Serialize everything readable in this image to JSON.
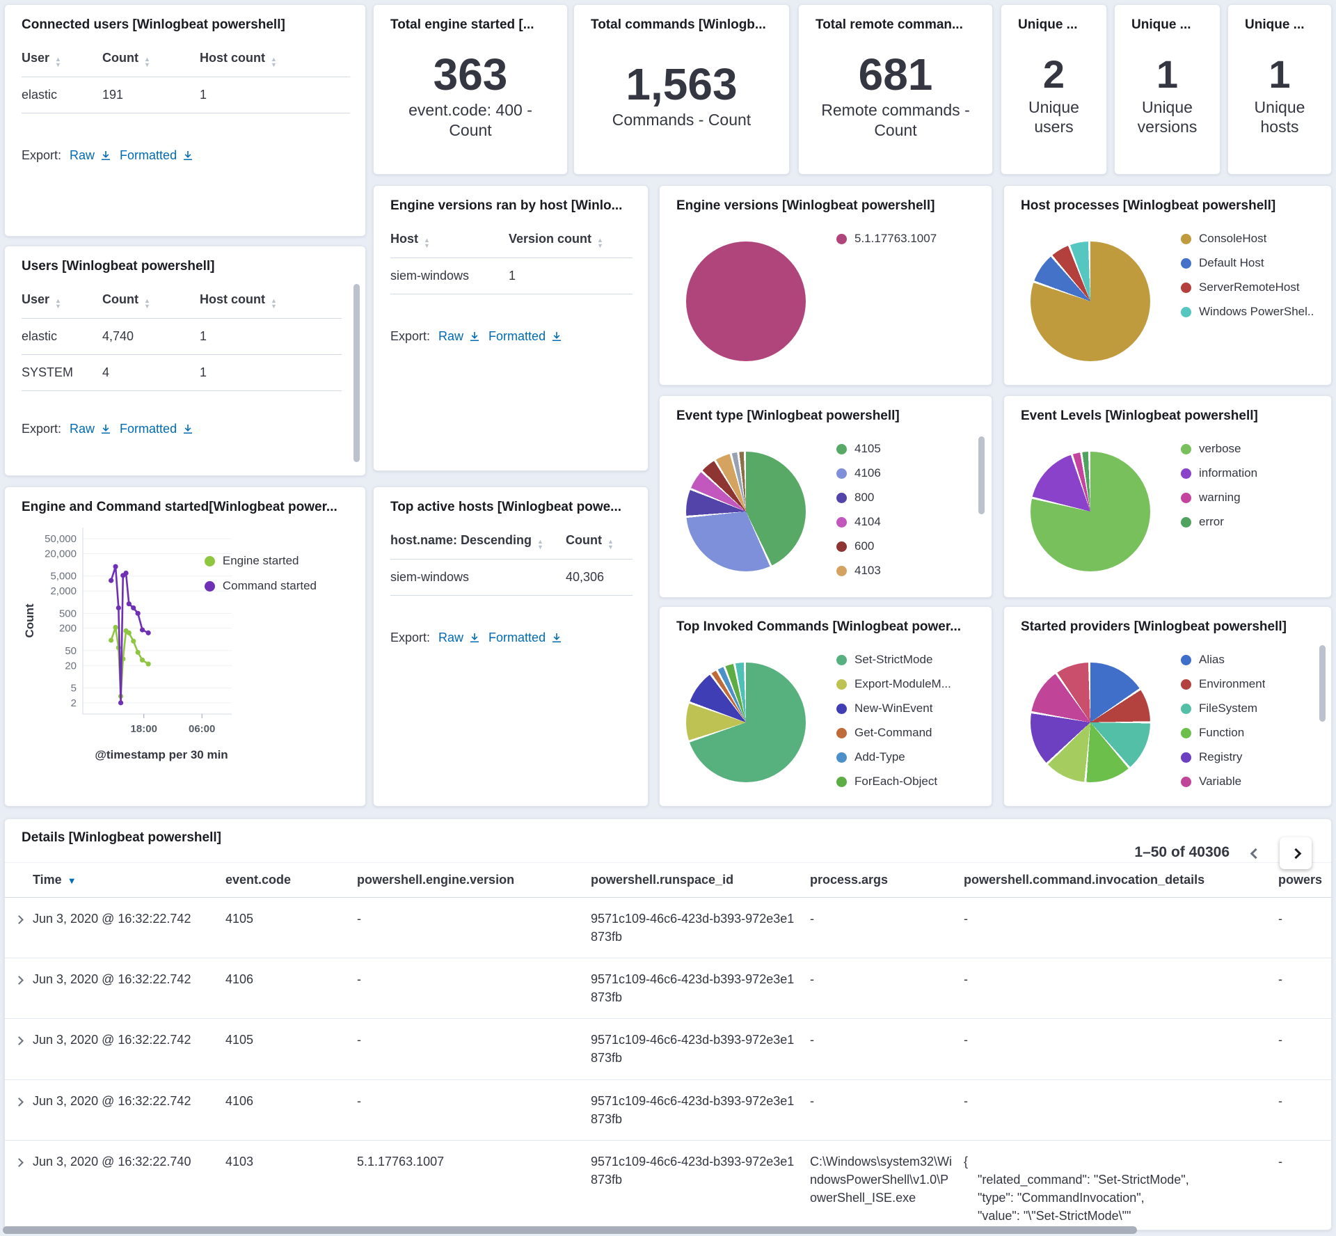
{
  "labels": {
    "export": "Export:",
    "raw": "Raw",
    "formatted": "Formatted"
  },
  "connected_users": {
    "title": "Connected users [Winlogbeat powershell]",
    "columns": [
      "User",
      "Count",
      "Host count"
    ],
    "rows": [
      [
        "elastic",
        "191",
        "1"
      ]
    ]
  },
  "users": {
    "title": "Users [Winlogbeat powershell]",
    "columns": [
      "User",
      "Count",
      "Host count"
    ],
    "rows": [
      [
        "elastic",
        "4,740",
        "1"
      ],
      [
        "SYSTEM",
        "4",
        "1"
      ]
    ]
  },
  "engine_versions_by_host": {
    "title": "Engine versions ran by host [Winlo...",
    "columns": [
      "Host",
      "Version count"
    ],
    "rows": [
      [
        "siem-windows",
        "1"
      ]
    ]
  },
  "top_active_hosts": {
    "title": "Top active hosts [Winlogbeat powe...",
    "columns": [
      "host.name: Descending",
      "Count"
    ],
    "rows": [
      [
        "siem-windows",
        "40,306"
      ]
    ]
  },
  "metrics": [
    {
      "title": "Total engine started [...",
      "value": "363",
      "label": "event.code: 400 - Count"
    },
    {
      "title": "Total commands [Winlogb...",
      "value": "1,563",
      "label": "Commands - Count"
    },
    {
      "title": "Total remote comman...",
      "value": "681",
      "label": "Remote commands - Count"
    },
    {
      "title": "Unique ...",
      "value": "2",
      "label": "Unique users"
    },
    {
      "title": "Unique ...",
      "value": "1",
      "label": "Unique versions"
    },
    {
      "title": "Unique ...",
      "value": "1",
      "label": "Unique hosts"
    }
  ],
  "chart_data": {
    "pies": {
      "engine_versions": {
        "type": "pie",
        "title": "Engine versions [Winlogbeat powershell]",
        "slices": [
          {
            "label": "5.1.17763.1007",
            "value": 100,
            "color": "#b0457c"
          }
        ]
      },
      "host_processes": {
        "type": "pie",
        "title": "Host processes [Winlogbeat powershell]",
        "slices": [
          {
            "label": "ConsoleHost",
            "value": 82,
            "color": "#bf9b3d"
          },
          {
            "label": "Default Host",
            "value": 8,
            "color": "#4472c8"
          },
          {
            "label": "ServerRemoteHost",
            "value": 5,
            "color": "#b3403c"
          },
          {
            "label": "Windows PowerShel...",
            "value": 5,
            "color": "#55c6c0"
          }
        ]
      },
      "event_type": {
        "type": "pie",
        "title": "Event type [Winlogbeat powershell]",
        "slices": [
          {
            "label": "4105",
            "value": 43,
            "color": "#58a965"
          },
          {
            "label": "4106",
            "value": 30,
            "color": "#7e90da"
          },
          {
            "label": "800",
            "value": 7,
            "color": "#5244a8"
          },
          {
            "label": "4104",
            "value": 5,
            "color": "#c258bd"
          },
          {
            "label": "600",
            "value": 4,
            "color": "#8e3433"
          },
          {
            "label": "4103",
            "value": 4,
            "color": "#d3a35f"
          },
          {
            "label": "",
            "value": 1.4,
            "color": "#98a2b1"
          },
          {
            "label": "",
            "value": 1.2,
            "color": "#8b6f47"
          }
        ]
      },
      "event_levels": {
        "type": "pie",
        "title": "Event Levels [Winlogbeat powershell]",
        "slices": [
          {
            "label": "verbose",
            "value": 80,
            "color": "#77c05b"
          },
          {
            "label": "information",
            "value": 16,
            "color": "#8a42cb"
          },
          {
            "label": "warning",
            "value": 2,
            "color": "#c4449d"
          },
          {
            "label": "error",
            "value": 1.6,
            "color": "#4fa35f"
          }
        ]
      },
      "top_invoked": {
        "type": "pie",
        "title": "Top Invoked Commands [Winlogbeat power...",
        "slices": [
          {
            "label": "Set-StrictMode",
            "value": 70,
            "color": "#57b17e"
          },
          {
            "label": "Export-ModuleM...",
            "value": 10,
            "color": "#bdc252"
          },
          {
            "label": "New-WinEvent",
            "value": 9,
            "color": "#3f3eb4"
          },
          {
            "label": "Get-Command",
            "value": 1.4,
            "color": "#bf6b39"
          },
          {
            "label": "Add-Type",
            "value": 1.6,
            "color": "#4b90c8"
          },
          {
            "label": "ForEach-Object",
            "value": 2.2,
            "color": "#5cad44"
          },
          {
            "label": "",
            "value": 2.2,
            "color": "#4ec0b5"
          }
        ]
      },
      "started_providers": {
        "type": "pie",
        "title": "Started providers [Winlogbeat powershell]",
        "slices": [
          {
            "label": "Alias",
            "value": 14,
            "color": "#3f6fc9"
          },
          {
            "label": "Environment",
            "value": 8,
            "color": "#b3413e"
          },
          {
            "label": "FileSystem",
            "value": 12,
            "color": "#53bfa6"
          },
          {
            "label": "Function",
            "value": 11,
            "color": "#6dbf4b"
          },
          {
            "label": "",
            "value": 10,
            "color": "#a5cc5e"
          },
          {
            "label": "Registry",
            "value": 13,
            "color": "#6c40c1"
          },
          {
            "label": "Variable",
            "value": 11,
            "color": "#c04498"
          },
          {
            "label": "",
            "value": 8,
            "color": "#c94f6d"
          }
        ]
      }
    },
    "timeline": {
      "type": "line",
      "title": "Engine and Command started[Winlogbeat power...",
      "ylabel": "Count",
      "xlabel": "@timestamp per 30 min",
      "ymax": 100000,
      "yticks": [
        50000,
        20000,
        5000,
        2000,
        500,
        200,
        50,
        20,
        5,
        2
      ],
      "xticks": [
        {
          "label": "18:00",
          "pos": 41
        },
        {
          "label": "06:00",
          "pos": 80
        }
      ],
      "series": [
        {
          "label": "Engine started",
          "color": "#8fc640",
          "points": [
            [
              19,
              95
            ],
            [
              22,
              210
            ],
            [
              24,
              60
            ],
            [
              25.5,
              3
            ],
            [
              27,
              30
            ],
            [
              29,
              170
            ],
            [
              31,
              150
            ],
            [
              34,
              90
            ],
            [
              37,
              45
            ],
            [
              40,
              28
            ],
            [
              44,
              22
            ]
          ]
        },
        {
          "label": "Command started",
          "color": "#6e30b5",
          "points": [
            [
              19,
              3800
            ],
            [
              22,
              9000
            ],
            [
              24,
              700
            ],
            [
              25.5,
              2
            ],
            [
              27,
              5200
            ],
            [
              29,
              6000
            ],
            [
              31,
              900
            ],
            [
              34,
              700
            ],
            [
              37,
              500
            ],
            [
              40,
              180
            ],
            [
              44,
              150
            ]
          ]
        }
      ]
    }
  },
  "details": {
    "title": "Details [Winlogbeat powershell]",
    "pagination": "1–50 of 40306",
    "columns": [
      "Time",
      "event.code",
      "powershell.engine.version",
      "powershell.runspace_id",
      "process.args",
      "powershell.command.invocation_details",
      "powers"
    ],
    "rows": [
      [
        "Jun 3, 2020 @ 16:32:22.742",
        "4105",
        "-",
        "9571c109-46c6-423d-b393-972e3e1873fb",
        "-",
        "-",
        "-"
      ],
      [
        "Jun 3, 2020 @ 16:32:22.742",
        "4106",
        "-",
        "9571c109-46c6-423d-b393-972e3e1873fb",
        "-",
        "-",
        "-"
      ],
      [
        "Jun 3, 2020 @ 16:32:22.742",
        "4105",
        "-",
        "9571c109-46c6-423d-b393-972e3e1873fb",
        "-",
        "-",
        "-"
      ],
      [
        "Jun 3, 2020 @ 16:32:22.742",
        "4106",
        "-",
        "9571c109-46c6-423d-b393-972e3e1873fb",
        "-",
        "-",
        "-"
      ],
      [
        "Jun 3, 2020 @ 16:32:22.740",
        "4103",
        "5.1.17763.1007",
        "9571c109-46c6-423d-b393-972e3e1873fb",
        "C:\\Windows\\system32\\WindowsPowerShell\\v1.0\\PowerShell_ISE.exe",
        "{\n    \"related_command\": \"Set-StrictMode\",\n    \"type\": \"CommandInvocation\",\n    \"value\": \"\\\"Set-StrictMode\\\"\"\n}",
        "-"
      ]
    ]
  }
}
